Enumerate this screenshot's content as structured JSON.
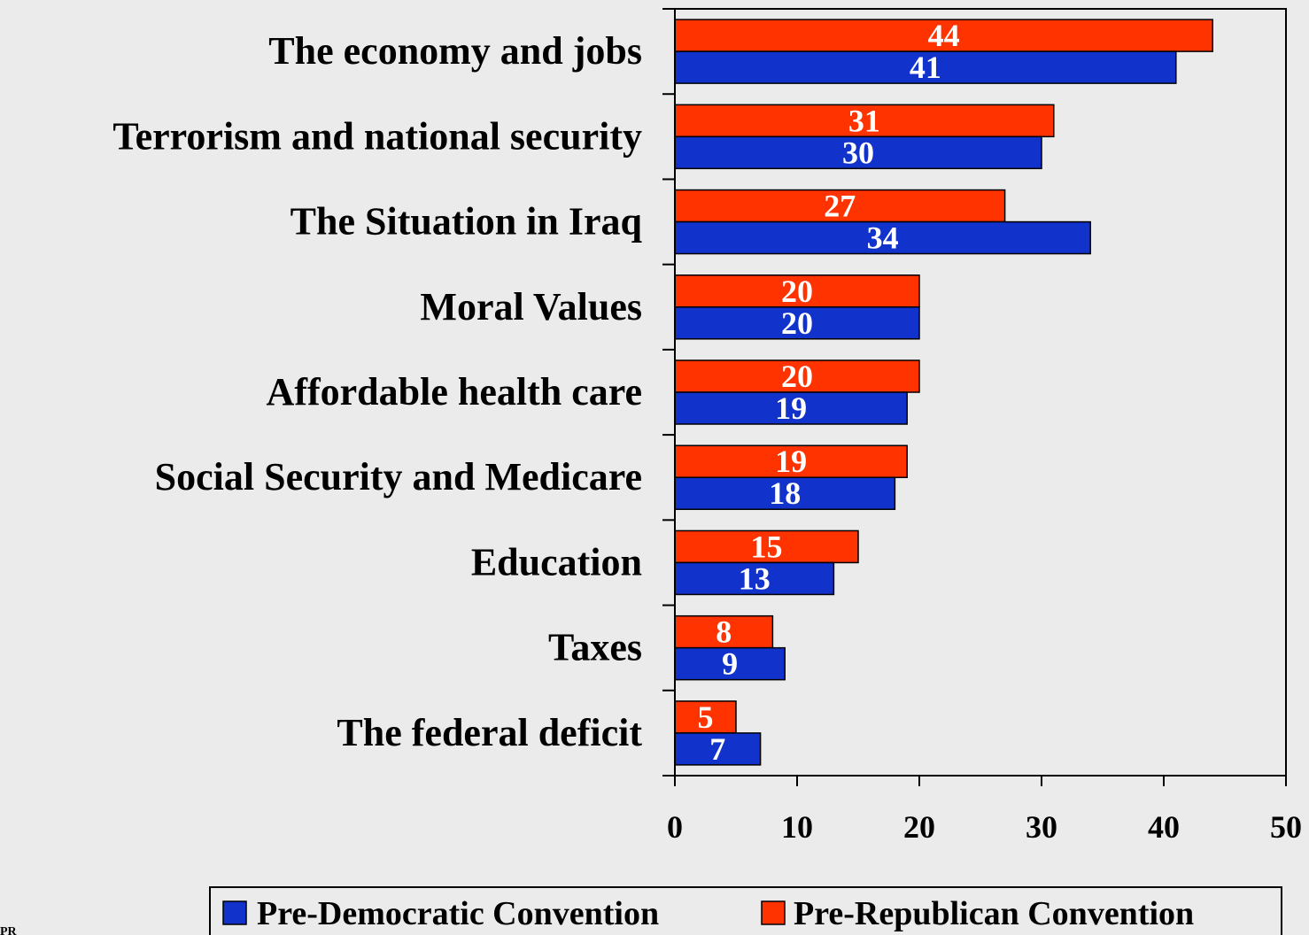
{
  "chart_data": {
    "type": "bar",
    "orientation": "horizontal",
    "categories": [
      "The economy and jobs",
      "Terrorism and national security",
      "The Situation in Iraq",
      "Moral Values",
      "Affordable health care",
      "Social Security and Medicare",
      "Education",
      "Taxes",
      "The federal deficit"
    ],
    "series": [
      {
        "name": "Pre-Republican Convention",
        "color": "#ff3300",
        "values": [
          44,
          31,
          27,
          20,
          20,
          19,
          15,
          8,
          5
        ]
      },
      {
        "name": "Pre-Democratic Convention",
        "color": "#1133cc",
        "values": [
          41,
          30,
          34,
          20,
          19,
          18,
          13,
          9,
          7
        ]
      }
    ],
    "xlim": [
      0,
      50
    ],
    "xticks": [
      0,
      10,
      20,
      30,
      40,
      50
    ],
    "title": "",
    "xlabel": "",
    "ylabel": "",
    "grid": false,
    "legend_position": "bottom",
    "legend_order": [
      "Pre-Democratic Convention",
      "Pre-Republican Convention"
    ]
  },
  "corner_text": "PR"
}
